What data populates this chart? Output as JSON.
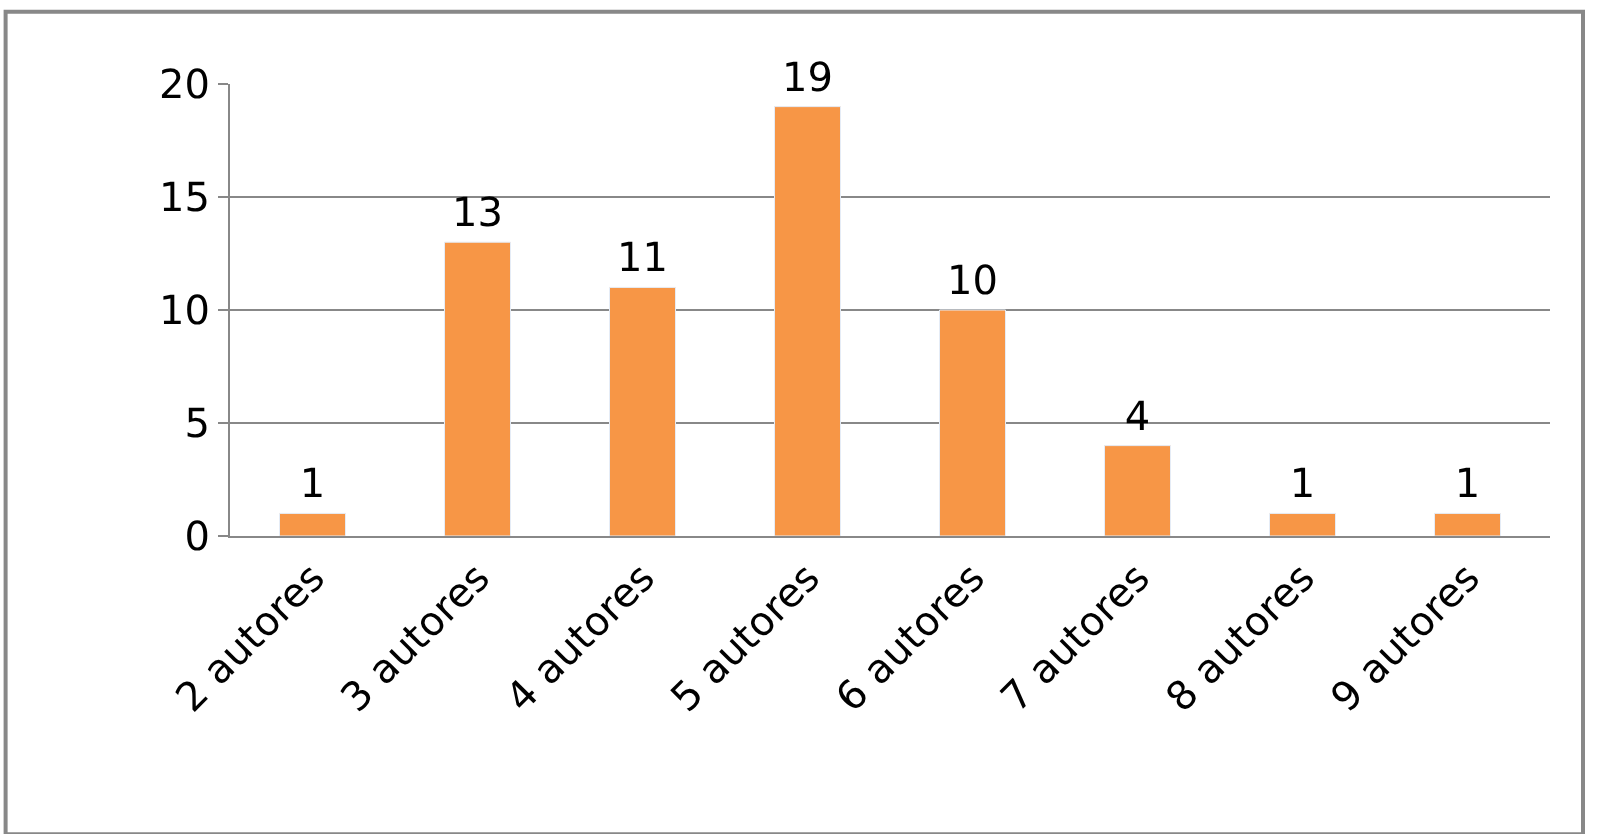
{
  "chart_data": {
    "type": "bar",
    "categories": [
      "2 autores",
      "3 autores",
      "4 autores",
      "5 autores",
      "6 autores",
      "7 autores",
      "8 autores",
      "9 autores"
    ],
    "values": [
      1,
      13,
      11,
      19,
      10,
      4,
      1,
      1
    ],
    "color": "#f79646",
    "ylim": [
      0,
      20
    ],
    "yticks": [
      0,
      5,
      10,
      15,
      20
    ],
    "grid": "y",
    "data_labels": true,
    "legend": false
  }
}
